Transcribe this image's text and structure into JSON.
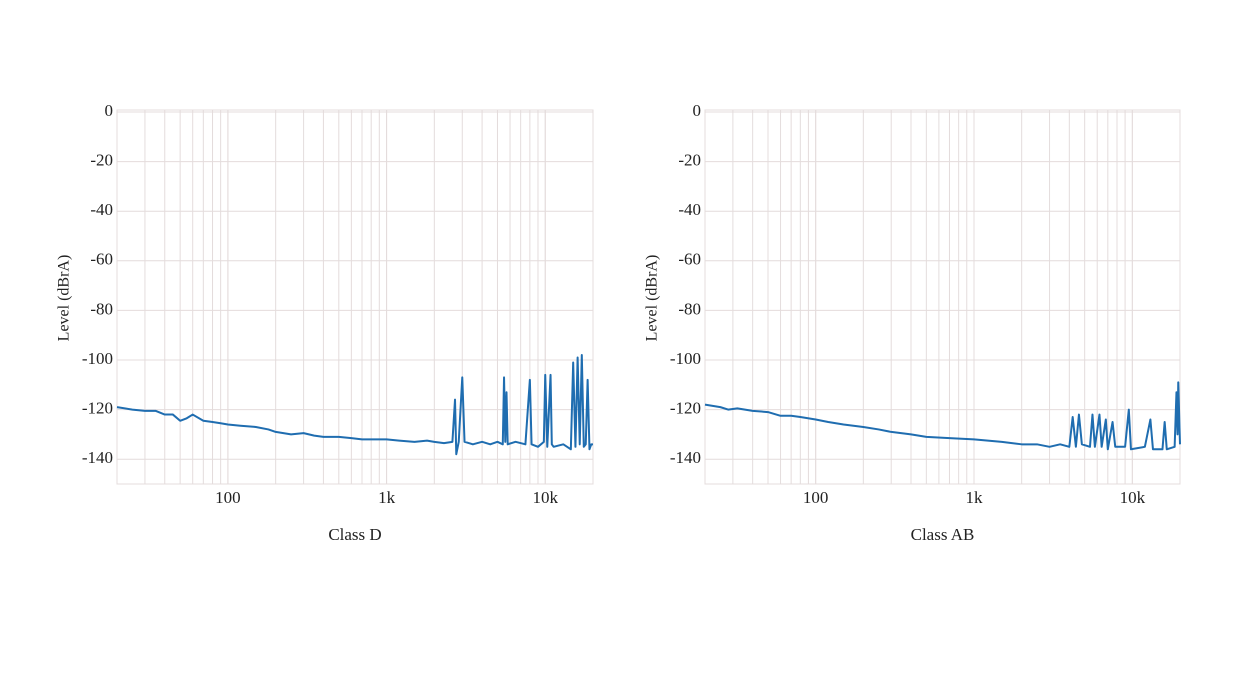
{
  "chart_data": [
    {
      "type": "line",
      "x_label": "Class D",
      "y_label": "Level (dBrA)",
      "log_x": true,
      "grid": true,
      "xlim": [
        20,
        20000
      ],
      "ylim": [
        -150,
        0
      ],
      "xticks": [
        100,
        {
          "value": 1000,
          "label": "1k"
        },
        {
          "value": 10000,
          "label": "10k"
        }
      ],
      "yticks": [
        0,
        -20,
        -40,
        -60,
        -80,
        -100,
        -120,
        -140
      ],
      "x": [
        20,
        25,
        30,
        35,
        40,
        45,
        50,
        55,
        60,
        70,
        80,
        90,
        100,
        120,
        150,
        180,
        200,
        250,
        300,
        350,
        400,
        500,
        600,
        700,
        800,
        1000,
        1200,
        1500,
        1800,
        2000,
        2300,
        2600,
        2700,
        2750,
        2850,
        3000,
        3100,
        3500,
        4000,
        4500,
        5000,
        5400,
        5500,
        5600,
        5700,
        5800,
        6500,
        7500,
        8000,
        8200,
        9000,
        9800,
        10000,
        10300,
        10800,
        11000,
        11300,
        13000,
        14500,
        15000,
        15500,
        16000,
        16500,
        17000,
        17500,
        18000,
        18500,
        19000,
        19500,
        20000
      ],
      "series": [
        {
          "color": "#1f6db0",
          "values": [
            -119,
            -120,
            -120.5,
            -120.5,
            -122,
            -122,
            -124.5,
            -123.5,
            -122,
            -124.5,
            -125,
            -125.5,
            -126,
            -126.5,
            -127,
            -128,
            -129,
            -130,
            -129.5,
            -130.5,
            -131,
            -131,
            -131.5,
            -132,
            -132,
            -132,
            -132.5,
            -133,
            -132.5,
            -133,
            -133.5,
            -133,
            -116,
            -138,
            -133,
            -107,
            -133,
            -134,
            -133,
            -134,
            -133,
            -134,
            -107,
            -133,
            -113,
            -134,
            -133,
            -134,
            -108,
            -134,
            -135,
            -133,
            -106,
            -135,
            -106,
            -134,
            -135,
            -134,
            -136,
            -101,
            -135,
            -99,
            -134,
            -98,
            -135,
            -134,
            -108,
            -136,
            -134,
            -134
          ]
        }
      ]
    },
    {
      "type": "line",
      "x_label": "Class AB",
      "y_label": "Level (dBrA)",
      "log_x": true,
      "grid": true,
      "xlim": [
        20,
        20000
      ],
      "ylim": [
        -150,
        0
      ],
      "xticks": [
        100,
        {
          "value": 1000,
          "label": "1k"
        },
        {
          "value": 10000,
          "label": "10k"
        }
      ],
      "yticks": [
        0,
        -20,
        -40,
        -60,
        -80,
        -100,
        -120,
        -140
      ],
      "x": [
        20,
        25,
        28,
        32,
        40,
        50,
        60,
        70,
        80,
        100,
        120,
        150,
        200,
        250,
        300,
        400,
        500,
        700,
        1000,
        1500,
        2000,
        2500,
        3000,
        3500,
        4000,
        4200,
        4400,
        4600,
        4800,
        5400,
        5600,
        5800,
        6200,
        6400,
        6800,
        7000,
        7500,
        7800,
        9000,
        9500,
        9800,
        12000,
        13000,
        13500,
        15500,
        16000,
        16500,
        18500,
        19000,
        19300,
        19500,
        20000
      ],
      "series": [
        {
          "color": "#1f6db0",
          "values": [
            -118,
            -119,
            -120,
            -119.5,
            -120.5,
            -121,
            -122.5,
            -122.5,
            -123,
            -124,
            -125,
            -126,
            -127,
            -128,
            -129,
            -130,
            -131,
            -131.5,
            -132,
            -133,
            -134,
            -134,
            -135,
            -134,
            -135,
            -123,
            -135,
            -122,
            -134,
            -135,
            -122,
            -135,
            -122,
            -135,
            -124,
            -136,
            -125,
            -135,
            -135,
            -120,
            -136,
            -135,
            -124,
            -136,
            -136,
            -125,
            -136,
            -135,
            -113,
            -130,
            -109,
            -134
          ]
        }
      ]
    }
  ]
}
